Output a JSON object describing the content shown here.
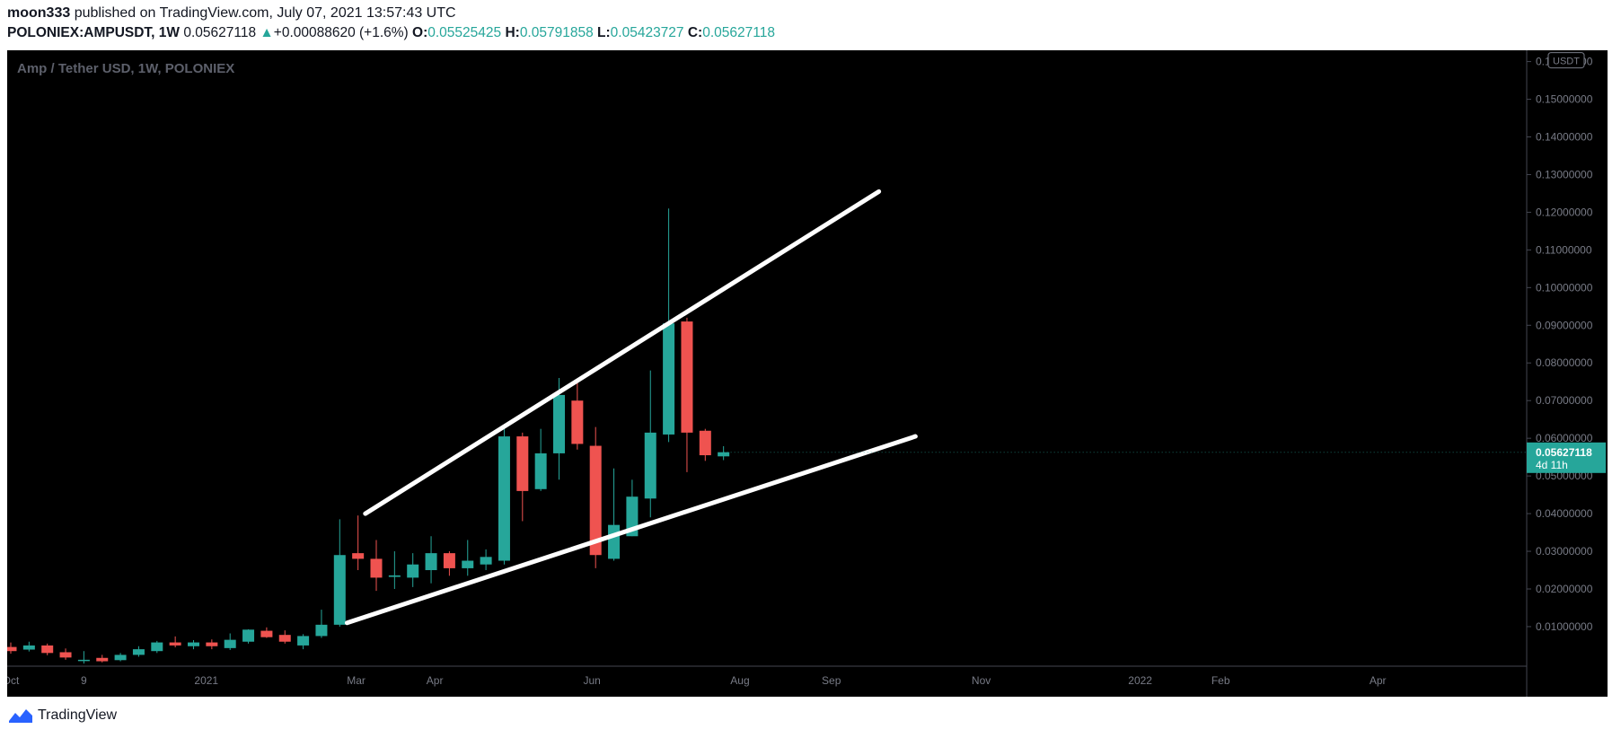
{
  "header": {
    "author": "moon333",
    "published_text": "published on TradingView.com, July 07, 2021 13:57:43 UTC",
    "symbol": "POLONIEX:AMPUSDT, 1W",
    "last_price": "0.05627118",
    "change_arrow": "▲",
    "change": "+0.00088620 (+1.6%)",
    "open_label": "O:",
    "open": "0.05525425",
    "high_label": "H:",
    "high": "0.05791858",
    "low_label": "L:",
    "low": "0.05423727",
    "close_label": "C:",
    "close": "0.05627118"
  },
  "footer": {
    "brand": "TradingView",
    "logo_icon": "tradingview-logo-icon"
  },
  "colors": {
    "background": "#000000",
    "up": "#26a69a",
    "down": "#ef5350",
    "axis_text": "#787b86",
    "trendline": "#ffffff",
    "watermark": "#5d606b"
  },
  "chart_data": {
    "type": "candlestick",
    "title": "Amp / Tether USD, 1W, POLONIEX",
    "currency_label": "USDT",
    "y_ticks": [
      "0.01000000",
      "0.02000000",
      "0.03000000",
      "0.04000000",
      "0.05000000",
      "0.06000000",
      "0.07000000",
      "0.08000000",
      "0.09000000",
      "0.10000000",
      "0.11000000",
      "0.12000000",
      "0.13000000",
      "0.14000000",
      "0.15000000",
      "0.16000000"
    ],
    "ylim": [
      -0.0005,
      0.163
    ],
    "x_ticks": [
      {
        "label": "Oct",
        "week": 0
      },
      {
        "label": "9",
        "week": 4
      },
      {
        "label": "2021",
        "week": 10.7
      },
      {
        "label": "Mar",
        "week": 18.9
      },
      {
        "label": "Apr",
        "week": 23.2
      },
      {
        "label": "Jun",
        "week": 31.8
      },
      {
        "label": "Aug",
        "week": 39.9
      },
      {
        "label": "Sep",
        "week": 44.9
      },
      {
        "label": "Nov",
        "week": 53.1
      },
      {
        "label": "2022",
        "week": 61.8
      },
      {
        "label": "Feb",
        "week": 66.2
      },
      {
        "label": "Apr",
        "week": 74.8
      }
    ],
    "candles": [
      {
        "o": 0.0046,
        "h": 0.0058,
        "l": 0.0028,
        "c": 0.0035
      },
      {
        "o": 0.0039,
        "h": 0.006,
        "l": 0.0034,
        "c": 0.005
      },
      {
        "o": 0.005,
        "h": 0.0055,
        "l": 0.0024,
        "c": 0.003
      },
      {
        "o": 0.0032,
        "h": 0.0042,
        "l": 0.0012,
        "c": 0.0018
      },
      {
        "o": 0.001,
        "h": 0.0035,
        "l": 0.0002,
        "c": 0.0012
      },
      {
        "o": 0.0017,
        "h": 0.0025,
        "l": 0.0005,
        "c": 0.0008
      },
      {
        "o": 0.0011,
        "h": 0.003,
        "l": 0.0008,
        "c": 0.0025
      },
      {
        "o": 0.0025,
        "h": 0.0048,
        "l": 0.002,
        "c": 0.004
      },
      {
        "o": 0.0035,
        "h": 0.0062,
        "l": 0.003,
        "c": 0.0058
      },
      {
        "o": 0.0058,
        "h": 0.0074,
        "l": 0.0045,
        "c": 0.005
      },
      {
        "o": 0.0048,
        "h": 0.0064,
        "l": 0.004,
        "c": 0.0058
      },
      {
        "o": 0.0058,
        "h": 0.0066,
        "l": 0.004,
        "c": 0.0048
      },
      {
        "o": 0.0043,
        "h": 0.0082,
        "l": 0.0038,
        "c": 0.0065
      },
      {
        "o": 0.006,
        "h": 0.0093,
        "l": 0.0055,
        "c": 0.0092
      },
      {
        "o": 0.0089,
        "h": 0.0098,
        "l": 0.007,
        "c": 0.0072
      },
      {
        "o": 0.0078,
        "h": 0.009,
        "l": 0.0055,
        "c": 0.006
      },
      {
        "o": 0.005,
        "h": 0.008,
        "l": 0.004,
        "c": 0.0075
      },
      {
        "o": 0.0075,
        "h": 0.0145,
        "l": 0.007,
        "c": 0.0105
      },
      {
        "o": 0.0105,
        "h": 0.0385,
        "l": 0.01,
        "c": 0.029
      },
      {
        "o": 0.0295,
        "h": 0.0395,
        "l": 0.025,
        "c": 0.028
      },
      {
        "o": 0.028,
        "h": 0.033,
        "l": 0.0195,
        "c": 0.023
      },
      {
        "o": 0.0232,
        "h": 0.03,
        "l": 0.02,
        "c": 0.0236
      },
      {
        "o": 0.023,
        "h": 0.0295,
        "l": 0.0205,
        "c": 0.0265
      },
      {
        "o": 0.025,
        "h": 0.034,
        "l": 0.0215,
        "c": 0.0295
      },
      {
        "o": 0.0295,
        "h": 0.03,
        "l": 0.0235,
        "c": 0.0255
      },
      {
        "o": 0.0255,
        "h": 0.033,
        "l": 0.0235,
        "c": 0.0275
      },
      {
        "o": 0.0265,
        "h": 0.0305,
        "l": 0.025,
        "c": 0.0285
      },
      {
        "o": 0.0275,
        "h": 0.063,
        "l": 0.0265,
        "c": 0.0605
      },
      {
        "o": 0.0605,
        "h": 0.0615,
        "l": 0.038,
        "c": 0.046
      },
      {
        "o": 0.0465,
        "h": 0.0625,
        "l": 0.046,
        "c": 0.056
      },
      {
        "o": 0.056,
        "h": 0.076,
        "l": 0.049,
        "c": 0.0715
      },
      {
        "o": 0.07,
        "h": 0.0755,
        "l": 0.057,
        "c": 0.0585
      },
      {
        "o": 0.058,
        "h": 0.063,
        "l": 0.0255,
        "c": 0.029
      },
      {
        "o": 0.028,
        "h": 0.052,
        "l": 0.0275,
        "c": 0.037
      },
      {
        "o": 0.034,
        "h": 0.049,
        "l": 0.034,
        "c": 0.0445
      },
      {
        "o": 0.044,
        "h": 0.078,
        "l": 0.039,
        "c": 0.0615
      },
      {
        "o": 0.061,
        "h": 0.121,
        "l": 0.059,
        "c": 0.0905
      },
      {
        "o": 0.091,
        "h": 0.092,
        "l": 0.051,
        "c": 0.0615
      },
      {
        "o": 0.062,
        "h": 0.0625,
        "l": 0.054,
        "c": 0.0555
      },
      {
        "o": 0.0552,
        "h": 0.0579,
        "l": 0.0542,
        "c": 0.0563
      }
    ],
    "trendlines": [
      {
        "name": "upper",
        "x1": 19.4,
        "y1": 0.04,
        "x2": 47.5,
        "y2": 0.1255
      },
      {
        "name": "lower",
        "x1": 18.4,
        "y1": 0.011,
        "x2": 49.5,
        "y2": 0.0605
      }
    ],
    "last_price_label": {
      "price": "0.05627118",
      "countdown": "4d 11h"
    }
  }
}
